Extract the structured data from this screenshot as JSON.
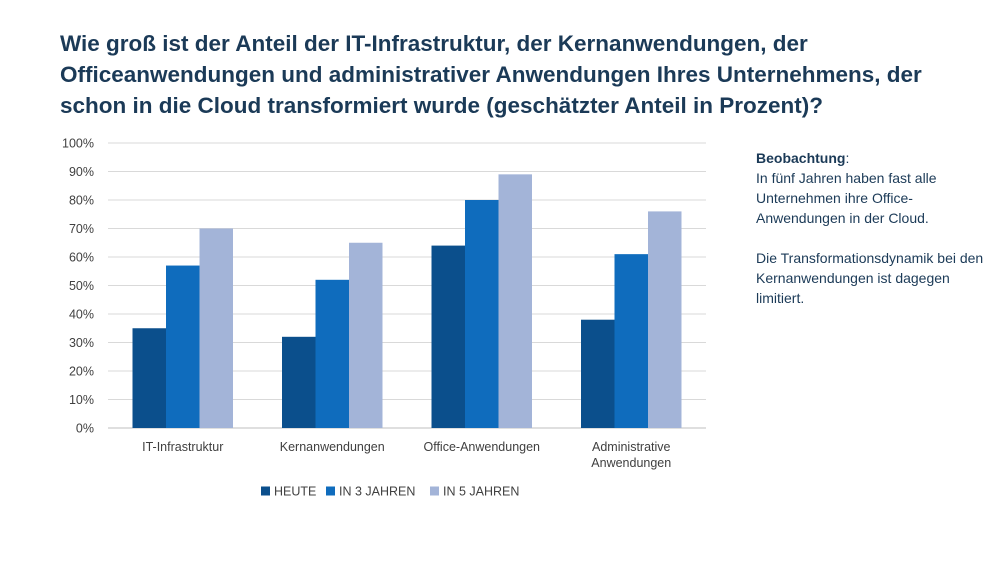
{
  "title": "Wie groß ist der Anteil der IT-Infrastruktur, der Kernanwendungen, der Officeanwendungen und administrativer Anwendungen Ihres Unternehmens, der schon in die Cloud transformiert wurde (geschätzter Anteil in Prozent)?",
  "observation": {
    "heading": "Beobachtung",
    "heading_suffix": ":",
    "paragraph1": "In fünf Jahren haben fast alle Unternehmen ihre Office-Anwendungen in der Cloud.",
    "paragraph2": "Die Transformationsdynamik bei den Kernanwendungen ist dagegen limitiert."
  },
  "colors": {
    "heute": "#0b4f8c",
    "in3": "#0f6cbd",
    "in5": "#a3b4d8",
    "text": "#1b3a57",
    "grid": "#d9d9d9"
  },
  "chart_data": {
    "type": "bar",
    "categories": [
      [
        "IT-Infrastruktur"
      ],
      [
        "Kernanwendungen"
      ],
      [
        "Office-Anwendungen"
      ],
      [
        "Administrative",
        "Anwendungen"
      ]
    ],
    "series": [
      {
        "name": "HEUTE",
        "values": [
          35,
          32,
          64,
          38
        ]
      },
      {
        "name": "IN 3 JAHREN",
        "values": [
          57,
          52,
          80,
          61
        ]
      },
      {
        "name": "IN 5 JAHREN",
        "values": [
          70,
          65,
          89,
          76
        ]
      }
    ],
    "y_ticks": [
      "0%",
      "10%",
      "20%",
      "30%",
      "40%",
      "50%",
      "60%",
      "70%",
      "80%",
      "90%",
      "100%"
    ],
    "ylim": [
      0,
      100
    ],
    "legend_position": "bottom",
    "grid": true
  }
}
